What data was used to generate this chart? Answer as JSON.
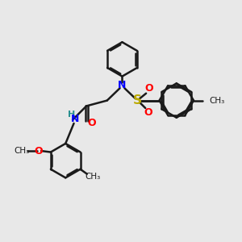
{
  "bg_color": "#e8e8e8",
  "bond_color": "#1a1a1a",
  "bond_width": 1.8,
  "dbo": 0.055,
  "figsize": [
    3.0,
    3.0
  ],
  "dpi": 100,
  "xlim": [
    0,
    10
  ],
  "ylim": [
    0,
    10
  ]
}
